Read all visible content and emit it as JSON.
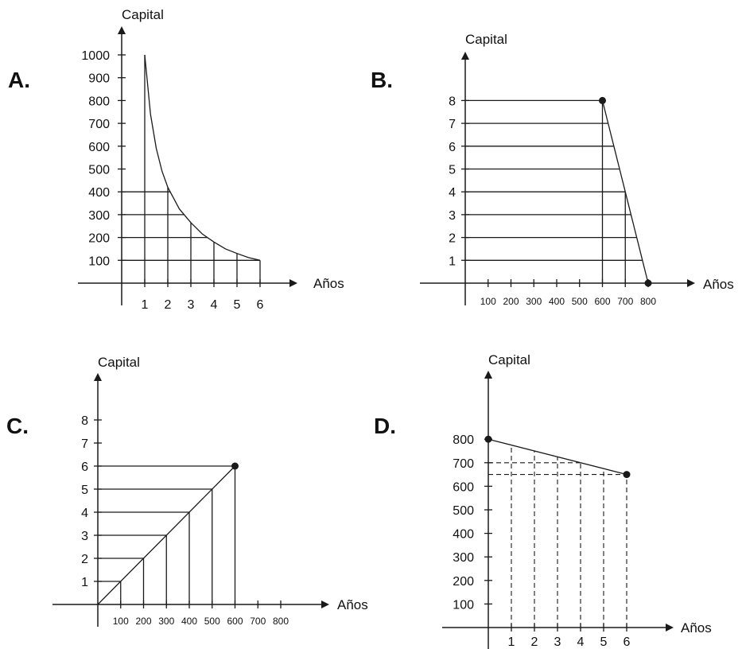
{
  "chart_data": [
    {
      "id": "A",
      "panel_label": "A.",
      "type": "line",
      "ylabel": "Capital",
      "xlabel": "Años",
      "x_ticks": [
        "1",
        "2",
        "3",
        "4",
        "5",
        "6"
      ],
      "y_ticks": [
        "100",
        "200",
        "300",
        "400",
        "500",
        "600",
        "700",
        "800",
        "900",
        "1000"
      ],
      "xlim": [
        0,
        6
      ],
      "ylim": [
        0,
        1000
      ],
      "series": [
        {
          "x": [
            1,
            1.5,
            2,
            2.5,
            3,
            3.5,
            4,
            4.5,
            5,
            5.5,
            6
          ],
          "y": [
            1000,
            631,
            398,
            251,
            158,
            100,
            100,
            100,
            100,
            100,
            100
          ]
        }
      ],
      "curve_x": [
        1,
        1.25,
        1.5,
        1.75,
        2,
        2.5,
        3,
        3.5,
        4,
        4.5,
        5,
        5.5,
        6
      ],
      "curve_y": [
        1000,
        740,
        590,
        490,
        420,
        325,
        265,
        215,
        180,
        150,
        130,
        112,
        100
      ],
      "guides_y": [
        100,
        200,
        300,
        400
      ],
      "guides_x": [
        1,
        2,
        3,
        4,
        5,
        6
      ]
    },
    {
      "id": "B",
      "panel_label": "B.",
      "type": "line",
      "ylabel": "Capital",
      "xlabel": "Años",
      "x_ticks": [
        "100",
        "200",
        "300",
        "400",
        "500",
        "600",
        "700",
        "800"
      ],
      "y_ticks": [
        "1",
        "2",
        "3",
        "4",
        "5",
        "6",
        "7",
        "8"
      ],
      "xlim": [
        0,
        800
      ],
      "ylim": [
        0,
        9
      ],
      "series": [
        {
          "x": [
            600,
            800
          ],
          "y": [
            8,
            0
          ]
        }
      ],
      "points": [
        {
          "x": 600,
          "y": 8
        },
        {
          "x": 800,
          "y": 0
        }
      ],
      "guides_y": [
        1,
        2,
        3,
        4,
        5,
        6,
        7,
        8
      ],
      "guides_x": [
        600,
        700
      ]
    },
    {
      "id": "C",
      "panel_label": "C.",
      "type": "line",
      "ylabel": "Capital",
      "xlabel": "Años",
      "x_ticks": [
        "100",
        "200",
        "300",
        "400",
        "500",
        "600",
        "700",
        "800"
      ],
      "y_ticks": [
        "1",
        "2",
        "3",
        "4",
        "5",
        "6",
        "7",
        "8"
      ],
      "xlim": [
        0,
        800
      ],
      "ylim": [
        0,
        8
      ],
      "series": [
        {
          "x": [
            0,
            600
          ],
          "y": [
            0,
            6
          ]
        }
      ],
      "points": [
        {
          "x": 600,
          "y": 6
        }
      ],
      "guides_y": [
        1,
        2,
        3,
        4,
        5,
        6
      ],
      "guides_x": [
        100,
        200,
        300,
        400,
        500,
        600
      ]
    },
    {
      "id": "D",
      "panel_label": "D.",
      "type": "line",
      "ylabel": "Capital",
      "xlabel": "Años",
      "x_ticks": [
        "1",
        "2",
        "3",
        "4",
        "5",
        "6"
      ],
      "y_ticks": [
        "100",
        "200",
        "300",
        "400",
        "500",
        "600",
        "700",
        "800"
      ],
      "xlim": [
        0,
        6
      ],
      "ylim": [
        0,
        800
      ],
      "series": [
        {
          "x": [
            0,
            6
          ],
          "y": [
            800,
            650
          ]
        }
      ],
      "points": [
        {
          "x": 0,
          "y": 800
        },
        {
          "x": 6,
          "y": 650
        }
      ],
      "dashed_y": [
        700,
        650
      ],
      "dashed_x": [
        1,
        2,
        3,
        4,
        5,
        6
      ]
    }
  ]
}
